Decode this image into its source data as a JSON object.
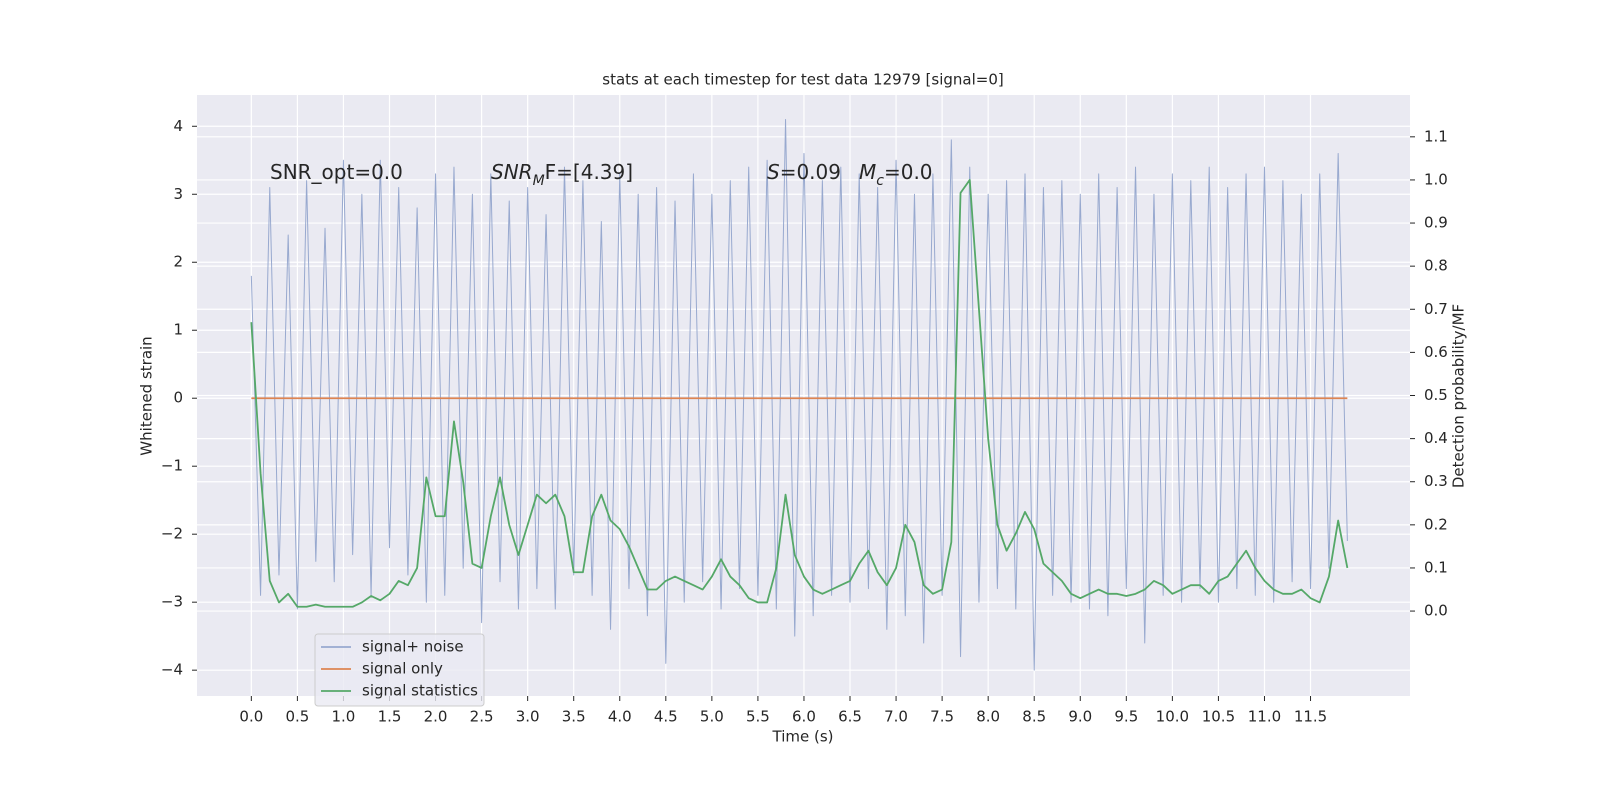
{
  "chart_data": {
    "type": "line",
    "title": "stats at each timestep for test data 12979 [signal=0]",
    "xlabel": "Time (s)",
    "ylabel": "Whitened strain",
    "y2label": "Detection probability/MF",
    "grid": true,
    "legend": "lower left",
    "annotations": [
      [
        {
          "text": "SNR_opt=0.0",
          "style": "normal"
        }
      ],
      [
        {
          "text": "SNR",
          "style": "italic"
        },
        {
          "text": "M",
          "style": "sub"
        },
        {
          "text": "F=[4.39]",
          "style": "normal"
        }
      ],
      [
        {
          "text": "S",
          "style": "italic"
        },
        {
          "text": "=0.09",
          "style": "normal"
        }
      ],
      [
        {
          "text": "M",
          "style": "italic"
        },
        {
          "text": "c",
          "style": "sub"
        },
        {
          "text": "=0.0",
          "style": "normal"
        }
      ]
    ],
    "xlim": [
      -0.59,
      12.58
    ],
    "ylim": [
      -4.38,
      4.46
    ],
    "y2lim": [
      -0.197,
      1.197
    ],
    "xticks": [
      {
        "value": 0,
        "label": "0.0"
      },
      0.5,
      {
        "value": 1,
        "label": "1.0"
      },
      1.5,
      {
        "value": 2,
        "label": "2.0"
      },
      2.5,
      {
        "value": 3,
        "label": "3.0"
      },
      3.5,
      {
        "value": 4,
        "label": "4.0"
      },
      4.5,
      {
        "value": 5,
        "label": "5.0"
      },
      5.5,
      {
        "value": 6,
        "label": "6.0"
      },
      6.5,
      {
        "value": 7,
        "label": "7.0"
      },
      7.5,
      {
        "value": 8,
        "label": "8.0"
      },
      8.5,
      {
        "value": 9,
        "label": "9.0"
      },
      9.5,
      {
        "value": 10,
        "label": "10.0"
      },
      10.5,
      {
        "value": 11,
        "label": "11.0"
      },
      11.5
    ],
    "yticks": [
      {
        "value": -4,
        "label": "−4"
      },
      {
        "value": -3,
        "label": "−3"
      },
      {
        "value": -2,
        "label": "−2"
      },
      {
        "value": -1,
        "label": "−1"
      },
      0,
      1,
      2,
      3,
      4
    ],
    "y2ticks": [
      {
        "value": 0,
        "label": "0.0"
      },
      0.1,
      0.2,
      0.3,
      0.4,
      0.5,
      0.6,
      0.7,
      0.8,
      0.9,
      {
        "value": 1,
        "label": "1.0"
      },
      1.1
    ],
    "x": [
      0,
      0.1,
      0.2,
      0.3,
      0.4,
      0.5,
      0.6,
      0.7,
      0.8,
      0.9,
      1,
      1.1,
      1.2,
      1.3,
      1.4,
      1.5,
      1.6,
      1.7,
      1.8,
      1.9,
      2,
      2.1,
      2.2,
      2.3,
      2.4,
      2.5,
      2.6,
      2.7,
      2.8,
      2.9,
      3,
      3.1,
      3.2,
      3.3,
      3.4,
      3.5,
      3.6,
      3.7,
      3.8,
      3.9,
      4,
      4.1,
      4.2,
      4.3,
      4.4,
      4.5,
      4.6,
      4.7,
      4.8,
      4.9,
      5,
      5.1,
      5.2,
      5.3,
      5.4,
      5.5,
      5.6,
      5.7,
      5.8,
      5.9,
      6,
      6.1,
      6.2,
      6.3,
      6.4,
      6.5,
      6.6,
      6.7,
      6.8,
      6.9,
      7,
      7.1,
      7.2,
      7.3,
      7.4,
      7.5,
      7.6,
      7.7,
      7.8,
      7.9,
      8,
      8.1,
      8.2,
      8.3,
      8.4,
      8.5,
      8.6,
      8.7,
      8.8,
      8.9,
      9,
      9.1,
      9.2,
      9.3,
      9.4,
      9.5,
      9.6,
      9.7,
      9.8,
      9.9,
      10,
      10.1,
      10.2,
      10.3,
      10.4,
      10.5,
      10.6,
      10.7,
      10.8,
      10.9,
      11,
      11.1,
      11.2,
      11.3,
      11.4,
      11.5,
      11.6,
      11.7,
      11.8,
      11.9
    ],
    "series": [
      {
        "name": "signal+ noise",
        "color": "#98a9cf",
        "values": [
          1.8,
          -2.9,
          3.1,
          -2.6,
          2.4,
          -3.1,
          3.2,
          -2.4,
          2.5,
          -2.7,
          3.5,
          -2.3,
          3.0,
          -2.9,
          3.5,
          -2.2,
          3.1,
          -2.6,
          2.8,
          -3.0,
          3.3,
          -2.9,
          3.4,
          -2.5,
          3.0,
          -3.3,
          3.3,
          -2.7,
          2.9,
          -3.1,
          3.1,
          -2.8,
          2.7,
          -3.1,
          3.4,
          -2.6,
          3.2,
          -2.9,
          2.6,
          -3.4,
          3.3,
          -2.8,
          3.0,
          -3.2,
          3.1,
          -3.9,
          2.9,
          -3.0,
          3.3,
          -2.7,
          3.0,
          -3.1,
          3.2,
          -2.8,
          3.4,
          -2.9,
          3.5,
          -3.1,
          4.1,
          -3.5,
          3.6,
          -3.2,
          3.2,
          -2.9,
          3.4,
          -3.0,
          3.3,
          -2.8,
          3.1,
          -3.4,
          3.5,
          -3.2,
          3.0,
          -3.6,
          3.3,
          -2.9,
          3.8,
          -3.8,
          3.4,
          -3.0,
          3.0,
          -2.8,
          3.2,
          -3.1,
          3.3,
          -4.0,
          3.1,
          -2.9,
          3.2,
          -3.0,
          3.0,
          -3.1,
          3.3,
          -3.2,
          3.1,
          -2.8,
          3.4,
          -3.6,
          3.0,
          -2.9,
          3.3,
          -3.0,
          3.2,
          -2.8,
          3.4,
          -3.0,
          3.1,
          -2.8,
          3.3,
          -2.9,
          3.4,
          -3.0,
          3.2,
          -2.7,
          3.0,
          -2.8,
          3.3,
          -2.5,
          3.6,
          -2.1
        ]
      },
      {
        "name": "signal only",
        "color": "#dd8452",
        "x": [
          0,
          11.9
        ],
        "values": [
          0,
          0
        ]
      },
      {
        "name": "signal statistics",
        "color": "#55a868",
        "axis": "y2",
        "values": [
          0.67,
          0.32,
          0.07,
          0.02,
          0.04,
          0.01,
          0.01,
          0.015,
          0.01,
          0.01,
          0.01,
          0.01,
          0.02,
          0.035,
          0.025,
          0.04,
          0.07,
          0.06,
          0.1,
          0.31,
          0.22,
          0.22,
          0.44,
          0.3,
          0.11,
          0.1,
          0.22,
          0.31,
          0.2,
          0.13,
          0.2,
          0.27,
          0.25,
          0.27,
          0.22,
          0.09,
          0.09,
          0.22,
          0.27,
          0.21,
          0.19,
          0.15,
          0.1,
          0.05,
          0.05,
          0.07,
          0.08,
          0.07,
          0.06,
          0.05,
          0.08,
          0.12,
          0.08,
          0.06,
          0.03,
          0.02,
          0.02,
          0.1,
          0.27,
          0.13,
          0.08,
          0.05,
          0.04,
          0.05,
          0.06,
          0.07,
          0.11,
          0.14,
          0.09,
          0.06,
          0.1,
          0.2,
          0.16,
          0.06,
          0.04,
          0.05,
          0.16,
          0.97,
          1.0,
          0.7,
          0.4,
          0.2,
          0.14,
          0.18,
          0.23,
          0.19,
          0.11,
          0.09,
          0.07,
          0.04,
          0.03,
          0.04,
          0.05,
          0.04,
          0.04,
          0.035,
          0.04,
          0.05,
          0.07,
          0.06,
          0.04,
          0.05,
          0.06,
          0.06,
          0.04,
          0.07,
          0.08,
          0.11,
          0.14,
          0.1,
          0.07,
          0.05,
          0.04,
          0.04,
          0.05,
          0.03,
          0.02,
          0.08,
          0.21,
          0.1
        ]
      }
    ]
  }
}
